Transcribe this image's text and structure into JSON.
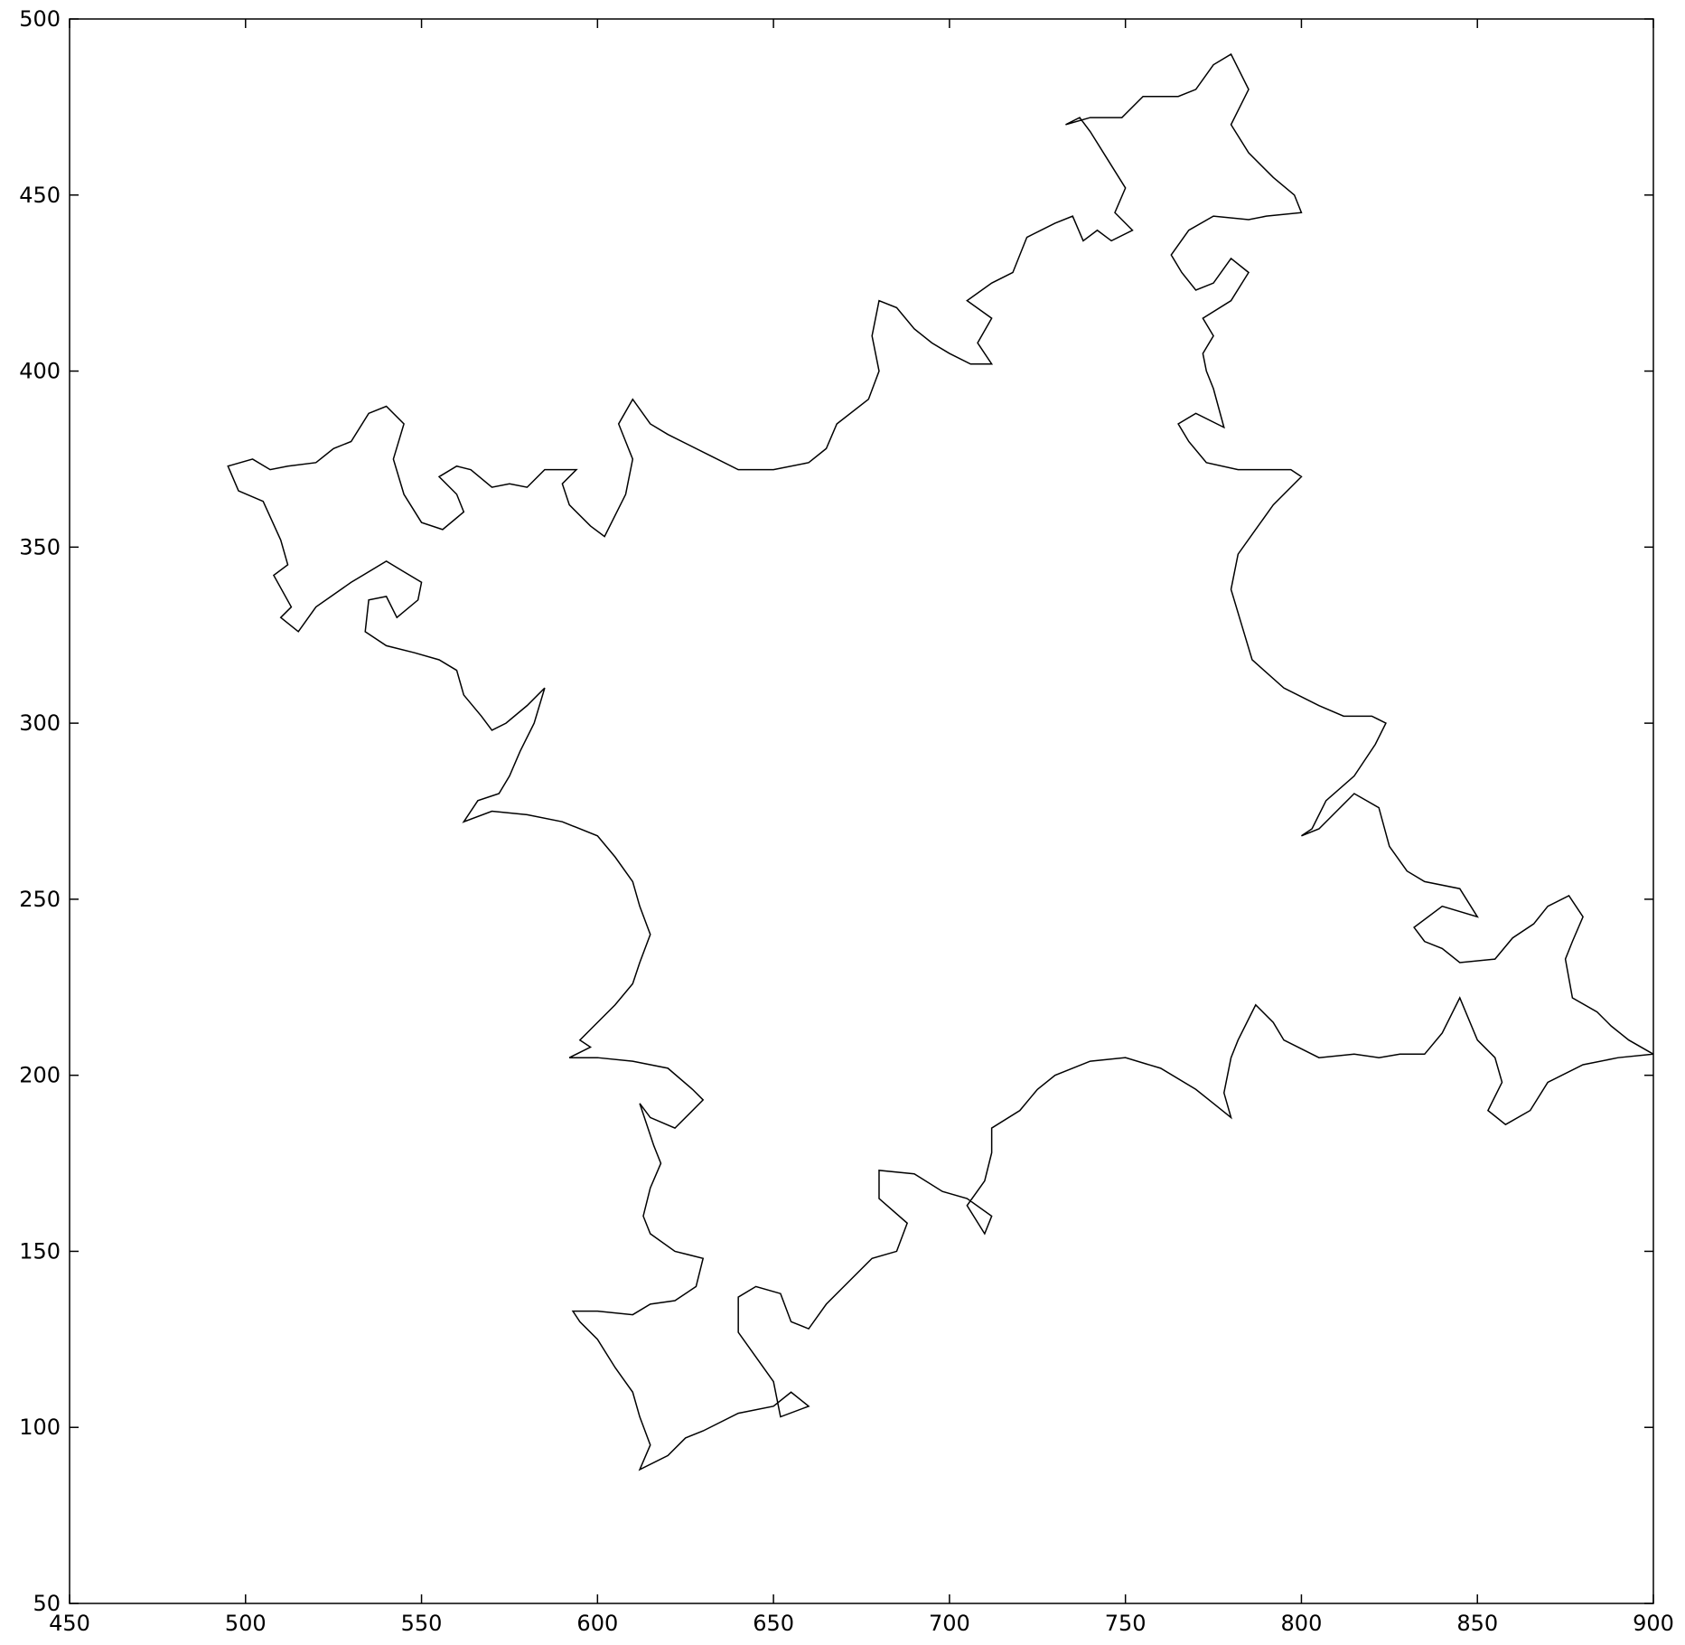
{
  "chart_data": {
    "type": "line",
    "x": [
      900,
      893,
      888,
      884,
      877,
      875,
      877,
      880,
      876,
      870,
      866,
      860,
      855,
      845,
      840,
      835,
      832,
      840,
      850,
      845,
      835,
      830,
      825,
      822,
      815,
      810,
      805,
      800,
      803,
      807,
      815,
      821,
      824,
      820,
      812,
      805,
      795,
      786,
      783,
      780,
      782,
      787,
      792,
      800,
      797,
      792,
      782,
      773,
      768,
      765,
      770,
      778,
      775,
      773,
      772,
      775,
      772,
      780,
      785,
      780,
      775,
      770,
      766,
      763,
      768,
      775,
      785,
      790,
      800,
      798,
      792,
      785,
      780,
      785,
      780,
      775,
      770,
      765,
      755,
      749,
      740,
      733,
      737,
      740,
      745,
      750,
      747,
      752,
      746,
      742,
      738,
      735,
      730,
      722,
      718,
      712,
      705,
      712,
      708,
      712,
      706,
      700,
      695,
      690,
      685,
      680,
      678,
      680,
      677,
      668,
      665,
      660,
      650,
      640,
      632,
      620,
      615,
      610,
      606,
      610,
      608,
      602,
      598,
      592,
      590,
      594,
      585,
      580,
      575,
      570,
      564,
      560,
      555,
      560,
      562,
      556,
      550,
      545,
      542,
      545,
      540,
      535,
      530,
      525,
      520,
      512,
      507,
      502,
      495,
      498,
      505,
      510,
      512,
      508,
      513,
      510,
      515,
      520,
      530,
      540,
      545,
      550,
      549,
      543,
      540,
      535,
      534,
      540,
      548,
      555,
      560,
      562,
      567,
      570,
      574,
      580,
      585,
      582,
      578,
      575,
      572,
      566,
      562,
      570,
      580,
      590,
      600,
      605,
      610,
      612,
      615,
      612,
      610,
      605,
      598,
      595,
      598,
      592,
      600,
      610,
      620,
      627,
      630,
      622,
      615,
      612,
      616,
      618,
      615,
      613,
      615,
      622,
      630,
      628,
      622,
      615,
      610,
      600,
      593,
      595,
      600,
      605,
      610,
      612,
      615,
      612,
      620,
      625,
      630,
      640,
      650,
      655,
      660,
      652,
      650,
      645,
      640,
      640,
      645,
      652,
      655,
      660,
      665,
      670,
      678,
      685,
      688,
      680,
      680,
      690,
      698,
      705,
      712,
      710,
      705,
      710,
      712,
      712,
      720,
      725,
      730,
      740,
      750,
      760,
      770,
      775,
      780,
      778,
      780,
      782,
      787,
      792,
      795,
      805,
      815,
      822,
      828,
      835,
      840,
      845,
      850,
      855,
      857,
      853,
      858,
      865,
      870,
      880,
      890,
      900
    ],
    "series": [
      {
        "color": "#000000",
        "values": [
          206,
          210,
          214,
          218,
          222,
          233,
          238,
          245,
          251,
          248,
          243,
          239,
          233,
          232,
          236,
          238,
          242,
          248,
          245,
          253,
          255,
          258,
          265,
          276,
          280,
          275,
          270,
          268,
          270,
          278,
          285,
          294,
          300,
          302,
          302,
          305,
          310,
          318,
          328,
          338,
          348,
          355,
          362,
          370,
          372,
          372,
          372,
          374,
          380,
          385,
          388,
          384,
          395,
          400,
          405,
          410,
          415,
          420,
          428,
          432,
          425,
          423,
          428,
          433,
          440,
          444,
          443,
          444,
          445,
          450,
          455,
          462,
          470,
          480,
          490,
          487,
          480,
          478,
          478,
          472,
          472,
          470,
          472,
          468,
          460,
          452,
          445,
          440,
          437,
          440,
          437,
          444,
          442,
          438,
          428,
          425,
          420,
          415,
          408,
          402,
          402,
          405,
          408,
          412,
          418,
          420,
          410,
          400,
          392,
          385,
          378,
          374,
          372,
          372,
          376,
          382,
          385,
          392,
          385,
          375,
          365,
          353,
          356,
          362,
          368,
          372,
          372,
          367,
          368,
          367,
          372,
          373,
          370,
          365,
          360,
          355,
          357,
          365,
          375,
          385,
          390,
          388,
          380,
          378,
          374,
          373,
          372,
          375,
          373,
          366,
          363,
          352,
          345,
          342,
          333,
          330,
          326,
          333,
          340,
          346,
          343,
          340,
          335,
          330,
          336,
          335,
          326,
          322,
          320,
          318,
          315,
          308,
          302,
          298,
          300,
          305,
          310,
          300,
          292,
          285,
          280,
          278,
          272,
          275,
          274,
          272,
          268,
          262,
          255,
          248,
          240,
          232,
          226,
          220,
          213,
          210,
          208,
          205,
          205,
          204,
          202,
          196,
          193,
          185,
          188,
          192,
          180,
          175,
          168,
          160,
          155,
          150,
          148,
          140,
          136,
          135,
          132,
          133,
          133,
          130,
          125,
          117,
          110,
          103,
          95,
          88,
          92,
          97,
          99,
          104,
          106,
          110,
          106,
          103,
          113,
          120,
          127,
          137,
          140,
          138,
          130,
          128,
          135,
          140,
          148,
          150,
          158,
          165,
          173,
          172,
          167,
          165,
          160,
          155,
          163,
          170,
          178,
          185,
          190,
          196,
          200,
          204,
          205,
          202,
          196,
          192,
          188,
          195,
          205,
          210,
          220,
          215,
          210,
          205,
          206,
          205,
          206,
          206,
          212,
          222,
          210,
          205,
          198,
          190,
          186,
          190,
          198,
          203,
          205,
          206
        ]
      }
    ],
    "xlim": [
      450,
      900
    ],
    "ylim": [
      50,
      500
    ],
    "xticks": [
      450,
      500,
      550,
      600,
      650,
      700,
      750,
      800,
      850,
      900
    ],
    "yticks": [
      50,
      100,
      150,
      200,
      250,
      300,
      350,
      400,
      450,
      500
    ]
  }
}
